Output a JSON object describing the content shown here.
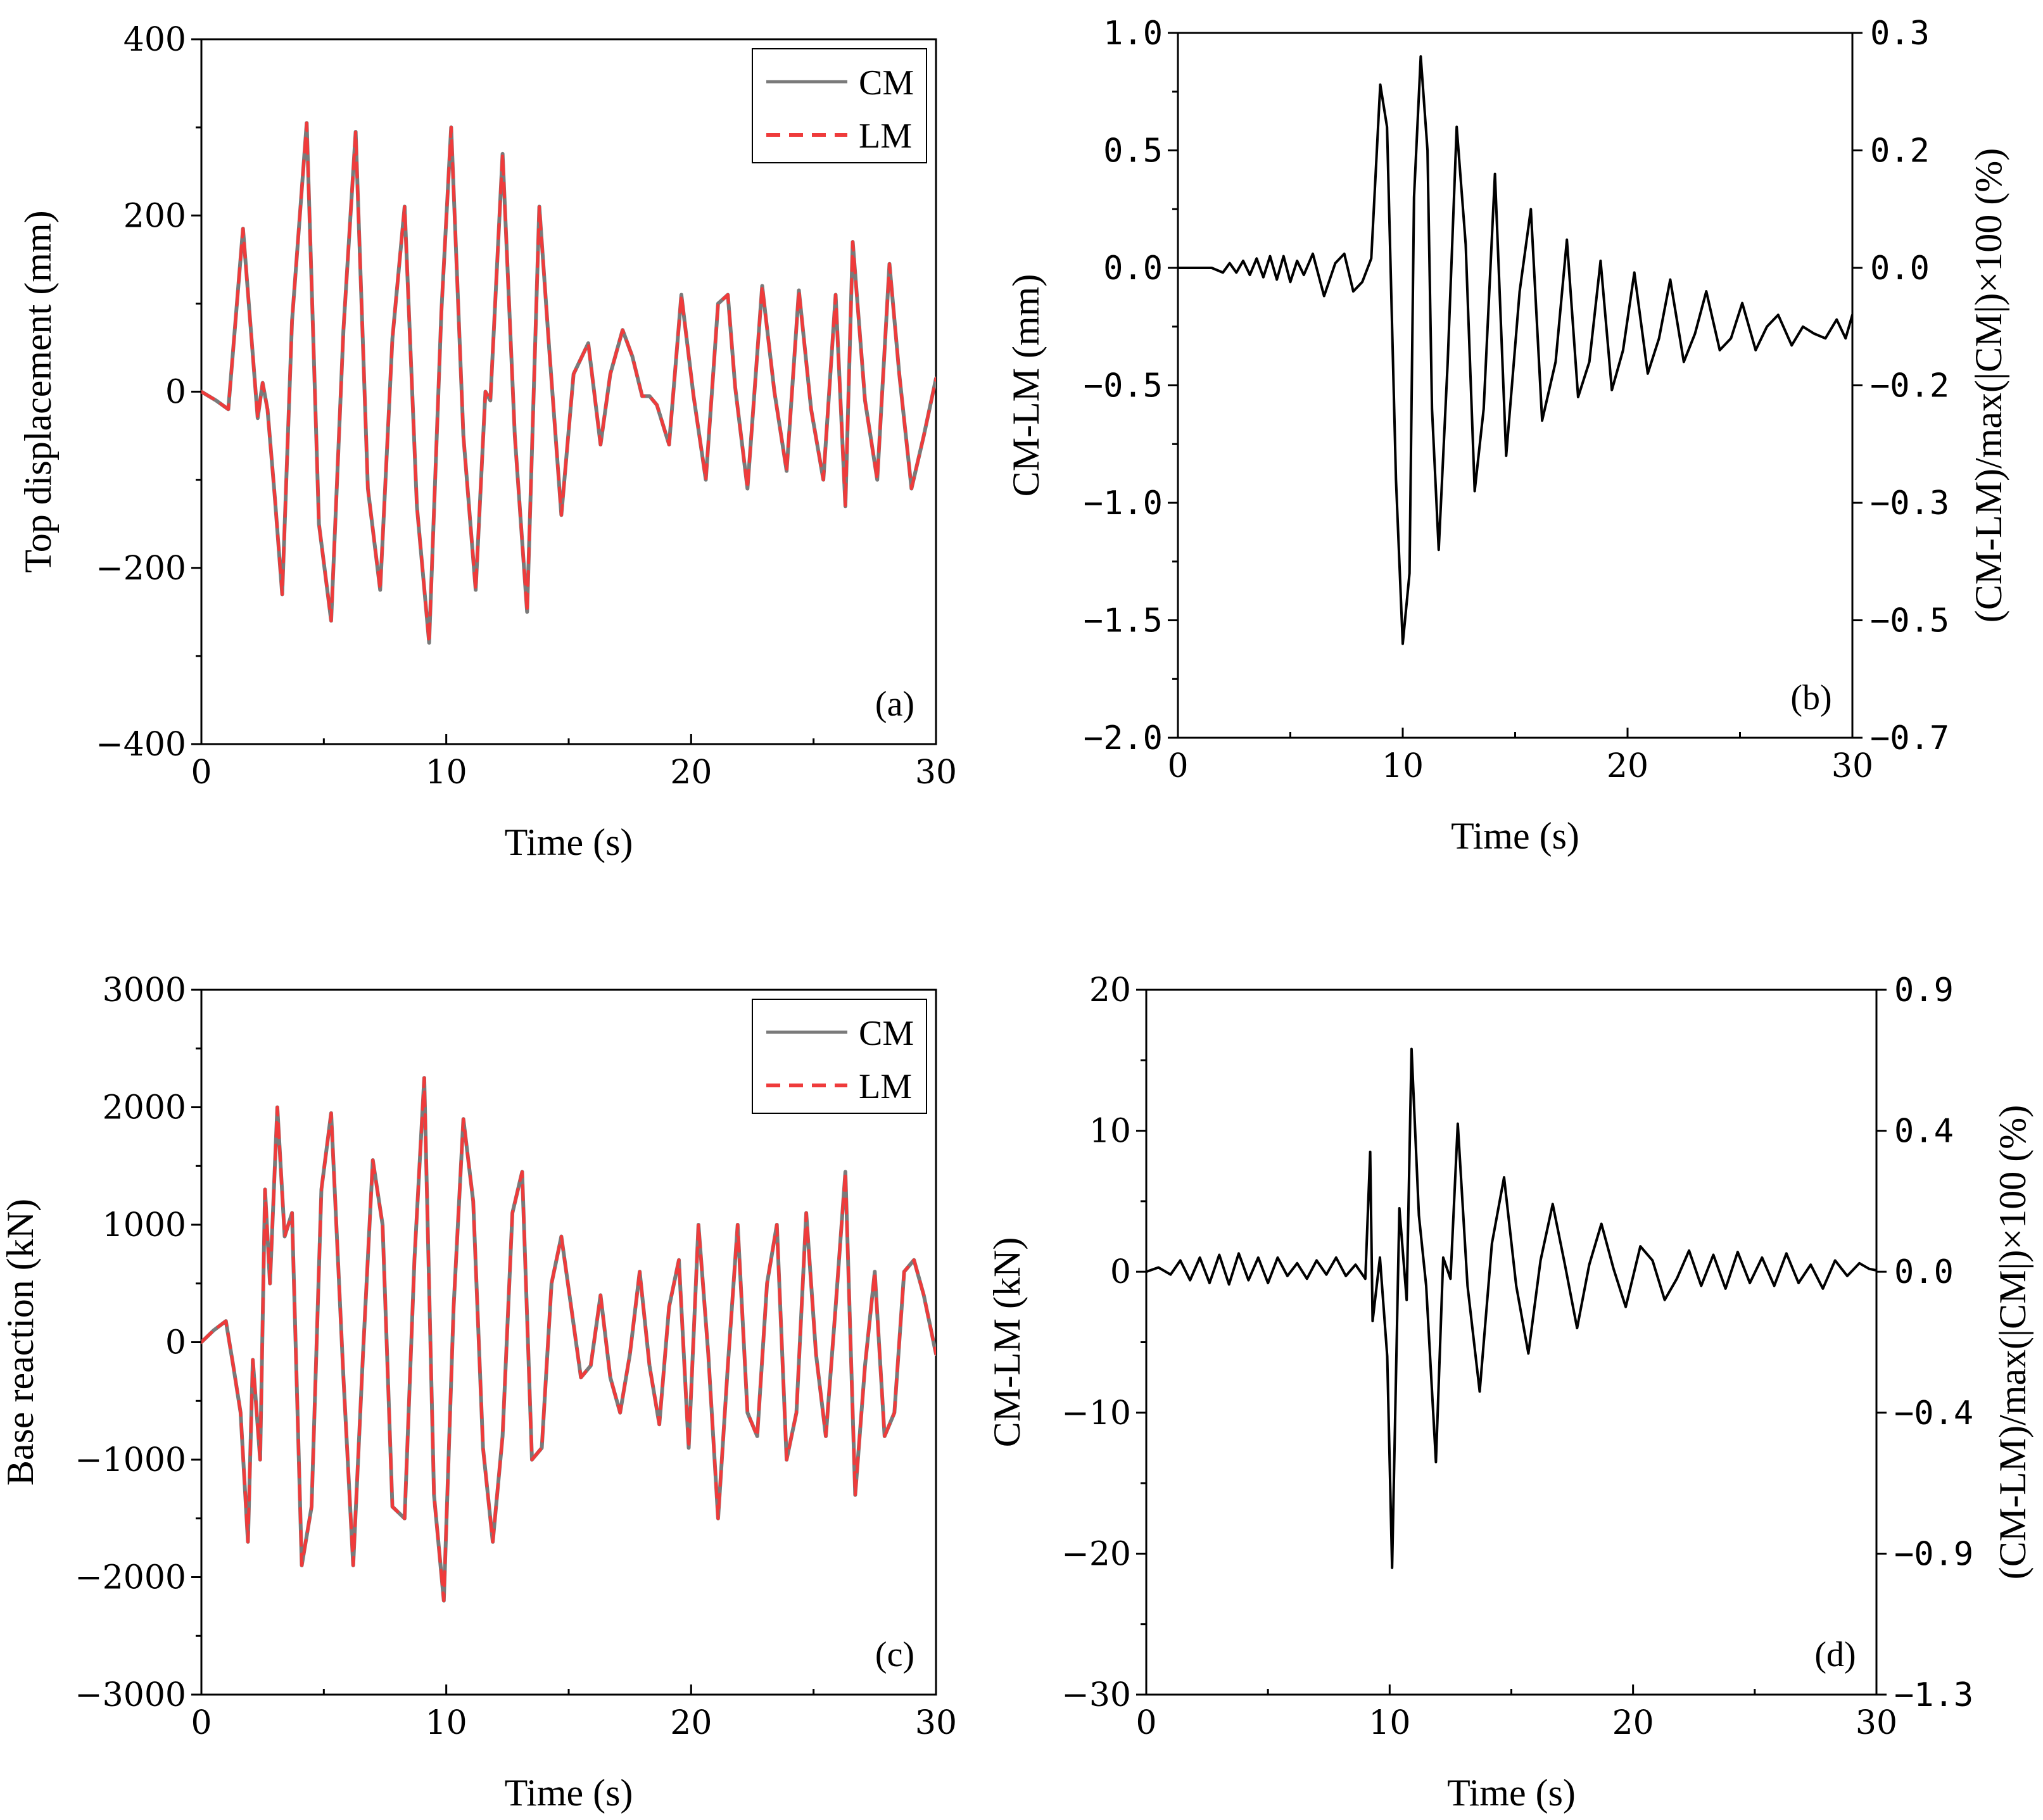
{
  "chart_data": [
    {
      "type": "line",
      "panel": "(a)",
      "xlabel": "Time (s)",
      "ylabel": "Top displacement (mm)",
      "xlim": [
        0,
        30
      ],
      "ylim": [
        -400,
        400
      ],
      "xticks": [
        0,
        10,
        20,
        30
      ],
      "yticks": [
        -400,
        -200,
        0,
        200,
        400
      ],
      "xtick_labels": [
        "0",
        "10",
        "20",
        "30"
      ],
      "ytick_labels": [
        "−400",
        "−200",
        "0",
        "200",
        "400"
      ],
      "legend": {
        "position": "top-right",
        "entries": [
          "CM",
          "LM"
        ]
      },
      "series": [
        {
          "name": "CM",
          "color": "#7a7a7a",
          "style": "solid",
          "x": [
            0,
            0.6,
            1.1,
            1.7,
            2.3,
            2.5,
            2.7,
            3.0,
            3.3,
            3.7,
            4.3,
            4.8,
            5.3,
            5.8,
            6.3,
            6.8,
            7.3,
            7.8,
            8.3,
            8.8,
            9.3,
            9.8,
            10.2,
            10.7,
            11.2,
            11.6,
            11.8,
            12.3,
            12.8,
            13.3,
            13.8,
            14.2,
            14.7,
            15.2,
            15.8,
            16.3,
            16.7,
            17.2,
            17.6,
            18.0,
            18.3,
            18.6,
            19.1,
            19.6,
            20.1,
            20.6,
            21.1,
            21.5,
            21.8,
            22.3,
            22.9,
            23.4,
            23.9,
            24.4,
            24.9,
            25.4,
            25.9,
            26.3,
            26.6,
            27.1,
            27.6,
            28.1,
            28.5,
            29.0,
            29.5,
            30.0
          ],
          "values": [
            0,
            -10,
            -20,
            185,
            -30,
            10,
            -20,
            -120,
            -230,
            80,
            305,
            -150,
            -260,
            70,
            295,
            -110,
            -225,
            60,
            210,
            -130,
            -285,
            90,
            300,
            -50,
            -225,
            0,
            -10,
            270,
            -50,
            -250,
            210,
            50,
            -140,
            20,
            55,
            -60,
            20,
            70,
            40,
            -5,
            -5,
            -15,
            -60,
            110,
            -5,
            -100,
            100,
            110,
            5,
            -110,
            120,
            0,
            -90,
            115,
            -20,
            -100,
            110,
            -130,
            170,
            -10,
            -100,
            145,
            20,
            -110,
            -50,
            15
          ]
        },
        {
          "name": "LM",
          "color": "#ef3b3b",
          "style": "dashed",
          "x": [
            0,
            0.6,
            1.1,
            1.7,
            2.3,
            2.5,
            2.7,
            3.0,
            3.3,
            3.7,
            4.3,
            4.8,
            5.3,
            5.8,
            6.3,
            6.8,
            7.3,
            7.8,
            8.3,
            8.8,
            9.3,
            9.8,
            10.2,
            10.7,
            11.2,
            11.6,
            11.8,
            12.3,
            12.8,
            13.3,
            13.8,
            14.2,
            14.7,
            15.2,
            15.8,
            16.3,
            16.7,
            17.2,
            17.6,
            18.0,
            18.3,
            18.6,
            19.1,
            19.6,
            20.1,
            20.6,
            21.1,
            21.5,
            21.8,
            22.3,
            22.9,
            23.4,
            23.9,
            24.4,
            24.9,
            25.4,
            25.9,
            26.3,
            26.6,
            27.1,
            27.6,
            28.1,
            28.5,
            29.0,
            29.5,
            30.0
          ],
          "values": [
            0,
            -10,
            -20,
            185,
            -30,
            10,
            -20,
            -120,
            -230,
            80,
            305,
            -150,
            -260,
            70,
            295,
            -110,
            -225,
            60,
            210,
            -130,
            -285,
            90,
            300,
            -50,
            -225,
            0,
            -10,
            270,
            -50,
            -250,
            210,
            50,
            -140,
            20,
            55,
            -60,
            20,
            70,
            40,
            -5,
            -5,
            -15,
            -60,
            110,
            -5,
            -100,
            100,
            110,
            5,
            -110,
            120,
            0,
            -90,
            115,
            -20,
            -100,
            110,
            -130,
            170,
            -10,
            -100,
            145,
            20,
            -110,
            -50,
            15
          ]
        }
      ]
    },
    {
      "type": "line",
      "panel": "(b)",
      "xlabel": "Time (s)",
      "ylabel": "CM-LM (mm)",
      "y2label": "(CM-LM)/max(|CM|)×100 (%)",
      "xlim": [
        0,
        30
      ],
      "ylim": [
        -2.0,
        1.0
      ],
      "xticks": [
        0,
        10,
        20,
        30
      ],
      "yticks": [
        -2.0,
        -1.5,
        -1.0,
        -0.5,
        0.0,
        0.5,
        1.0
      ],
      "xtick_labels": [
        "0",
        "10",
        "20",
        "30"
      ],
      "ytick_labels": [
        "−2.0",
        "−1.5",
        "−1.0",
        "−0.5",
        "0.0",
        "0.5",
        "1.0"
      ],
      "y2tick_labels": [
        "0.3",
        "0.2",
        "0.0",
        "−0.2",
        "−0.3",
        "−0.5",
        "−0.7"
      ],
      "series": [
        {
          "name": "CM-LM",
          "color": "#000000",
          "style": "solid",
          "x": [
            0,
            1.5,
            2.0,
            2.3,
            2.6,
            2.9,
            3.2,
            3.5,
            3.8,
            4.1,
            4.4,
            4.7,
            5.0,
            5.3,
            5.6,
            6.0,
            6.5,
            7.0,
            7.4,
            7.8,
            8.2,
            8.6,
            9.0,
            9.3,
            9.7,
            10.0,
            10.3,
            10.5,
            10.8,
            11.1,
            11.3,
            11.6,
            12.0,
            12.4,
            12.8,
            13.2,
            13.6,
            14.1,
            14.6,
            15.2,
            15.7,
            16.2,
            16.8,
            17.3,
            17.8,
            18.3,
            18.8,
            19.3,
            19.8,
            20.3,
            20.9,
            21.4,
            21.9,
            22.5,
            23.0,
            23.5,
            24.1,
            24.6,
            25.1,
            25.7,
            26.2,
            26.7,
            27.3,
            27.8,
            28.3,
            28.8,
            29.3,
            29.7,
            30.0
          ],
          "values": [
            0,
            0,
            -0.02,
            0.02,
            -0.02,
            0.03,
            -0.03,
            0.04,
            -0.04,
            0.05,
            -0.05,
            0.05,
            -0.06,
            0.03,
            -0.03,
            0.06,
            -0.12,
            0.02,
            0.06,
            -0.1,
            -0.06,
            0.04,
            0.78,
            0.6,
            -0.9,
            -1.6,
            -1.3,
            0.3,
            0.9,
            0.5,
            -0.6,
            -1.2,
            -0.4,
            0.6,
            0.1,
            -0.95,
            -0.6,
            0.4,
            -0.8,
            -0.1,
            0.25,
            -0.65,
            -0.4,
            0.12,
            -0.55,
            -0.4,
            0.03,
            -0.52,
            -0.35,
            -0.02,
            -0.45,
            -0.3,
            -0.05,
            -0.4,
            -0.28,
            -0.1,
            -0.35,
            -0.3,
            -0.15,
            -0.35,
            -0.25,
            -0.2,
            -0.33,
            -0.25,
            -0.28,
            -0.3,
            -0.22,
            -0.3,
            -0.2
          ]
        }
      ]
    },
    {
      "type": "line",
      "panel": "(c)",
      "xlabel": "Time (s)",
      "ylabel": "Base reaction (kN)",
      "xlim": [
        0,
        30
      ],
      "ylim": [
        -3000,
        3000
      ],
      "xticks": [
        0,
        10,
        20,
        30
      ],
      "yticks": [
        -3000,
        -2000,
        -1000,
        0,
        1000,
        2000,
        3000
      ],
      "xtick_labels": [
        "0",
        "10",
        "20",
        "30"
      ],
      "ytick_labels": [
        "−3000",
        "−2000",
        "−1000",
        "0",
        "1000",
        "2000",
        "3000"
      ],
      "legend": {
        "position": "top-right",
        "entries": [
          "CM",
          "LM"
        ]
      },
      "series": [
        {
          "name": "CM",
          "color": "#7a7a7a",
          "style": "solid",
          "x": [
            0,
            0.5,
            1.0,
            1.3,
            1.6,
            1.9,
            2.1,
            2.4,
            2.6,
            2.8,
            3.1,
            3.4,
            3.7,
            4.1,
            4.5,
            4.9,
            5.3,
            5.8,
            6.2,
            6.6,
            7.0,
            7.4,
            7.8,
            8.3,
            8.7,
            9.1,
            9.5,
            9.9,
            10.3,
            10.7,
            11.1,
            11.5,
            11.9,
            12.3,
            12.7,
            13.1,
            13.5,
            13.9,
            14.3,
            14.7,
            15.1,
            15.5,
            15.9,
            16.3,
            16.7,
            17.1,
            17.5,
            17.9,
            18.3,
            18.7,
            19.1,
            19.5,
            19.9,
            20.3,
            20.7,
            21.1,
            21.5,
            21.9,
            22.3,
            22.7,
            23.1,
            23.5,
            23.9,
            24.3,
            24.7,
            25.1,
            25.5,
            25.9,
            26.3,
            26.7,
            27.1,
            27.5,
            27.9,
            28.3,
            28.7,
            29.1,
            29.5,
            30.0
          ],
          "values": [
            0,
            100,
            180,
            -200,
            -600,
            -1700,
            -150,
            -1000,
            1300,
            500,
            2000,
            900,
            1100,
            -1900,
            -1400,
            1300,
            1950,
            -300,
            -1900,
            -100,
            1550,
            1000,
            -1400,
            -1500,
            700,
            2250,
            -1300,
            -2200,
            300,
            1900,
            1200,
            -900,
            -1700,
            -800,
            1100,
            1450,
            -1000,
            -900,
            500,
            900,
            300,
            -300,
            -200,
            400,
            -300,
            -600,
            -100,
            600,
            -200,
            -700,
            300,
            700,
            -900,
            1000,
            -100,
            -1500,
            -200,
            1000,
            -600,
            -800,
            500,
            1000,
            -1000,
            -600,
            1100,
            -100,
            -800,
            300,
            1450,
            -1300,
            -200,
            600,
            -800,
            -600,
            600,
            700,
            400,
            -100
          ]
        },
        {
          "name": "LM",
          "color": "#ef3b3b",
          "style": "dashed",
          "x": [
            0,
            0.5,
            1.0,
            1.3,
            1.6,
            1.9,
            2.1,
            2.4,
            2.6,
            2.8,
            3.1,
            3.4,
            3.7,
            4.1,
            4.5,
            4.9,
            5.3,
            5.8,
            6.2,
            6.6,
            7.0,
            7.4,
            7.8,
            8.3,
            8.7,
            9.1,
            9.5,
            9.9,
            10.3,
            10.7,
            11.1,
            11.5,
            11.9,
            12.3,
            12.7,
            13.1,
            13.5,
            13.9,
            14.3,
            14.7,
            15.1,
            15.5,
            15.9,
            16.3,
            16.7,
            17.1,
            17.5,
            17.9,
            18.3,
            18.7,
            19.1,
            19.5,
            19.9,
            20.3,
            20.7,
            21.1,
            21.5,
            21.9,
            22.3,
            22.7,
            23.1,
            23.5,
            23.9,
            24.3,
            24.7,
            25.1,
            25.5,
            25.9,
            26.3,
            26.7,
            27.1,
            27.5,
            27.9,
            28.3,
            28.7,
            29.1,
            29.5,
            30.0
          ],
          "values": [
            0,
            100,
            180,
            -200,
            -600,
            -1700,
            -150,
            -1000,
            1300,
            500,
            2000,
            900,
            1100,
            -1900,
            -1400,
            1300,
            1950,
            -300,
            -1900,
            -100,
            1550,
            1000,
            -1400,
            -1500,
            700,
            2250,
            -1300,
            -2200,
            300,
            1900,
            1200,
            -900,
            -1700,
            -800,
            1100,
            1450,
            -1000,
            -900,
            500,
            900,
            300,
            -300,
            -200,
            400,
            -300,
            -600,
            -100,
            600,
            -200,
            -700,
            300,
            700,
            -900,
            1000,
            -100,
            -1500,
            -200,
            1000,
            -600,
            -800,
            500,
            1000,
            -1000,
            -600,
            1100,
            -100,
            -800,
            300,
            1450,
            -1300,
            -200,
            600,
            -800,
            -600,
            600,
            700,
            400,
            -100
          ]
        }
      ]
    },
    {
      "type": "line",
      "panel": "(d)",
      "xlabel": "Time (s)",
      "ylabel": "CM-LM (kN)",
      "y2label": "(CM-LM)/max(|CM|)×100 (%)",
      "xlim": [
        0,
        30
      ],
      "ylim": [
        -30,
        20
      ],
      "xticks": [
        0,
        10,
        20,
        30
      ],
      "yticks": [
        -30,
        -20,
        -10,
        0,
        10,
        20
      ],
      "xtick_labels": [
        "0",
        "10",
        "20",
        "30"
      ],
      "ytick_labels": [
        "−30",
        "−20",
        "−10",
        "0",
        "10",
        "20"
      ],
      "y2tick_labels": [
        "0.9",
        "0.4",
        "0.0",
        "−0.4",
        "−0.9",
        "−1.3"
      ],
      "series": [
        {
          "name": "CM-LM",
          "color": "#000000",
          "style": "solid",
          "x": [
            0,
            0.5,
            1.0,
            1.4,
            1.8,
            2.2,
            2.6,
            3.0,
            3.4,
            3.8,
            4.2,
            4.6,
            5.0,
            5.4,
            5.8,
            6.2,
            6.6,
            7.0,
            7.4,
            7.8,
            8.2,
            8.6,
            9.0,
            9.2,
            9.3,
            9.6,
            9.9,
            10.1,
            10.4,
            10.7,
            10.9,
            11.2,
            11.5,
            11.9,
            12.2,
            12.5,
            12.8,
            13.2,
            13.7,
            14.2,
            14.7,
            15.2,
            15.7,
            16.2,
            16.7,
            17.2,
            17.7,
            18.2,
            18.7,
            19.2,
            19.7,
            20.3,
            20.8,
            21.3,
            21.8,
            22.3,
            22.8,
            23.3,
            23.8,
            24.3,
            24.8,
            25.3,
            25.8,
            26.3,
            26.8,
            27.3,
            27.8,
            28.3,
            28.8,
            29.3,
            29.7,
            30.0
          ],
          "values": [
            0,
            0.3,
            -0.2,
            0.8,
            -0.6,
            1.0,
            -0.8,
            1.2,
            -0.9,
            1.3,
            -0.6,
            1.0,
            -0.8,
            1.0,
            -0.3,
            0.6,
            -0.5,
            0.8,
            -0.2,
            1.0,
            -0.3,
            0.5,
            -0.5,
            8.5,
            -3.5,
            1.0,
            -6.0,
            -21.0,
            4.5,
            -2.0,
            15.8,
            4.0,
            -1.0,
            -13.5,
            1.0,
            -0.5,
            10.5,
            -1.0,
            -8.5,
            2.0,
            6.7,
            -1.0,
            -5.8,
            0.8,
            4.8,
            0.5,
            -4.0,
            0.5,
            3.4,
            0.2,
            -2.5,
            1.8,
            0.8,
            -2.0,
            -0.5,
            1.5,
            -1.0,
            1.2,
            -1.2,
            1.4,
            -0.8,
            1.0,
            -1.0,
            1.3,
            -0.8,
            0.5,
            -1.2,
            0.8,
            -0.3,
            0.6,
            0.2,
            0.1
          ]
        }
      ]
    }
  ]
}
